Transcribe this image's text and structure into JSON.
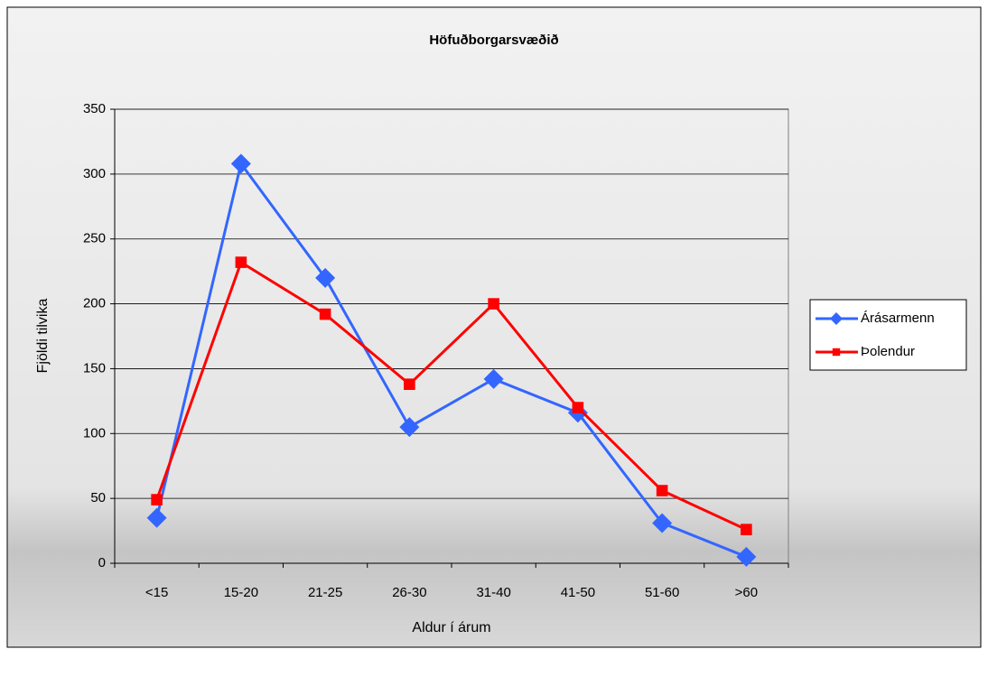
{
  "chart_data": {
    "type": "line",
    "title": "Höfuðborgarsvæðið",
    "x_label": "Aldur í árum",
    "y_label": "Fjöldi tilvika",
    "categories": [
      "<15",
      "15-20",
      "21-25",
      "26-30",
      "31-40",
      "41-50",
      "51-60",
      ">60"
    ],
    "series": [
      {
        "name": "Árásarmenn",
        "color": "#3366ff",
        "marker": "diamond",
        "values": [
          35,
          308,
          220,
          105,
          142,
          116,
          31,
          5
        ]
      },
      {
        "name": "Þolendur",
        "color": "#ff0000",
        "marker": "square",
        "values": [
          49,
          232,
          192,
          138,
          200,
          120,
          56,
          26
        ]
      }
    ],
    "ylim": [
      0,
      350
    ],
    "yticks": [
      0,
      50,
      100,
      150,
      200,
      250,
      300,
      350
    ],
    "grid": true,
    "legend": "right"
  }
}
